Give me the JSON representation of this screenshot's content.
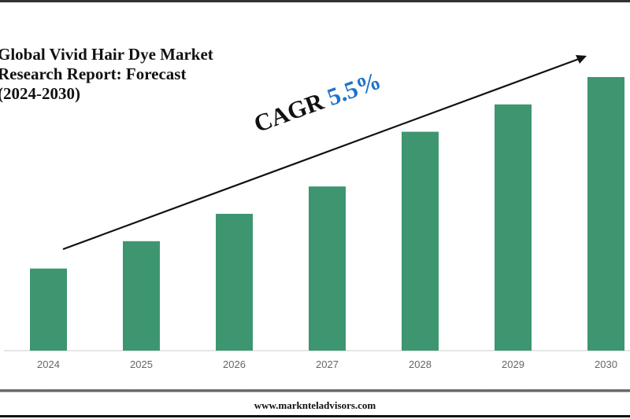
{
  "chart_data": {
    "type": "bar",
    "title": "Global Vivid Hair Dye Market Research Report: Forecast (2024-2030)",
    "title_lines": [
      "Global Vivid Hair Dye Market",
      "Research Report: Forecast",
      "(2024-2030)"
    ],
    "categories": [
      "2024",
      "2025",
      "2026",
      "2027",
      "2028",
      "2029",
      "2030"
    ],
    "values": [
      30,
      40,
      50,
      60,
      80,
      90,
      100
    ],
    "value_note_scale": "relative (no y-axis shown)",
    "ylim": [
      0,
      100
    ],
    "grid": false,
    "bar_color": "#3d9670",
    "annotation": {
      "label": "CAGR",
      "value": "5.5%",
      "value_color": "#1f73c8"
    }
  },
  "footer": {
    "website": "www.marknteladvisors.com"
  }
}
